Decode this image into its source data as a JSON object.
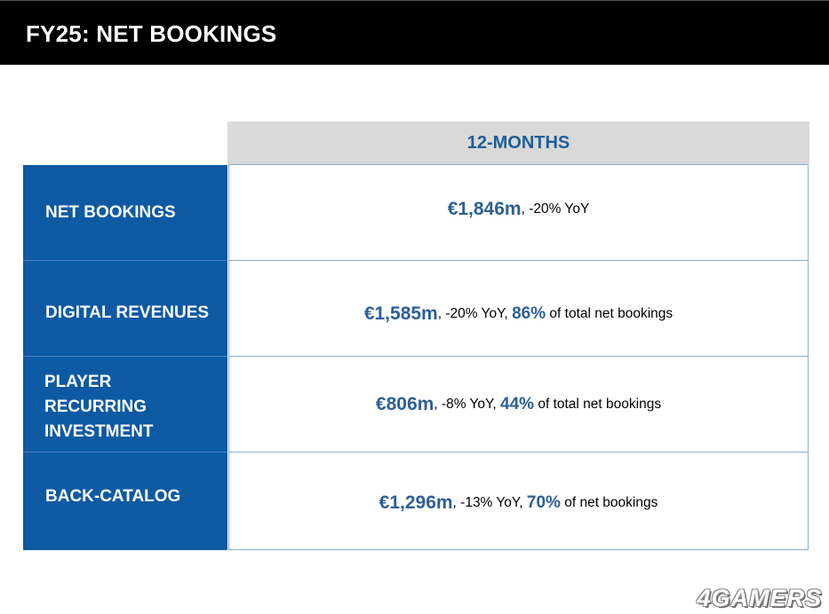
{
  "title": "FY25: NET BOOKINGS",
  "column_header": "12-MONTHS",
  "rows": [
    {
      "label": "NET BOOKINGS",
      "amount": "€1,846m",
      "yoy": ", -20% YoY",
      "share": "",
      "share_text": ""
    },
    {
      "label": "DIGITAL REVENUES",
      "amount": "€1,585m",
      "yoy": ", -20% YoY,",
      "share": "86%",
      "share_text": "of total net bookings"
    },
    {
      "label": "PLAYER RECURRING INVESTMENT",
      "amount": "€806m",
      "yoy": ", -8% YoY,",
      "share": "44%",
      "share_text": "of total net bookings"
    },
    {
      "label": "BACK-CATALOG",
      "amount": "€1,296m",
      "yoy": ", -13% YoY,",
      "share": "70%",
      "share_text": "of net bookings"
    }
  ],
  "watermark": "4GAMERS",
  "colors": {
    "title_bar": "#000000",
    "label_fill": "#0d5aa3",
    "header_fill": "#d9d9d9",
    "accent_text": "#2e5f97"
  }
}
